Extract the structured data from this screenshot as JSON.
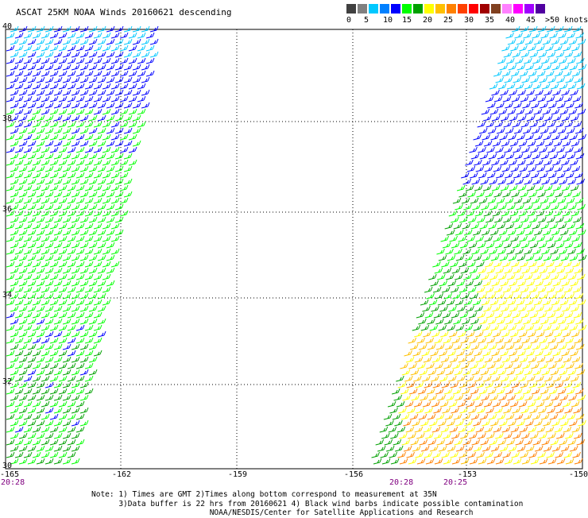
{
  "title": "ASCAT 25KM NOAA Winds 20160621 descending",
  "colorbar": {
    "cells": [
      "#404040",
      "#808080",
      "#00c8ff",
      "#0080ff",
      "#0000ff",
      "#00ff00",
      "#00a000",
      "#ffff00",
      "#ffc000",
      "#ff8000",
      "#ff4000",
      "#ff0000",
      "#a00000",
      "#804020",
      "#ff80ff",
      "#ff00ff",
      "#a000ff",
      "#5000a0"
    ],
    "labels": [
      "0",
      "5",
      "10",
      "15",
      "20",
      "25",
      "30",
      "35",
      "40",
      "45",
      ">50 knots"
    ]
  },
  "axes": {
    "lon_labels": [
      "-165",
      "-162",
      "-159",
      "-156",
      "-153",
      "-150"
    ],
    "lat_labels": [
      "40",
      "38",
      "36",
      "34",
      "32",
      "30"
    ]
  },
  "pass_times": [
    "20:28",
    "20:28",
    "20:25"
  ],
  "notes": [
    "Note: 1) Times are GMT 2)Times along bottom correspond to measurement at 35N",
    "      3)Data buffer is 22 hrs from 20160621 4) Black wind barbs indicate possible contamination",
    "                          NOAA/NESDIS/Center for Satellite Applications and Research"
  ],
  "colors": {
    "cyan": "#00c8ff",
    "blue": "#0000ff",
    "green": "#00ff00",
    "dark_green": "#00a000",
    "yellow": "#ffff00",
    "orange": "#ffc000",
    "dark_orange": "#ff8000"
  }
}
